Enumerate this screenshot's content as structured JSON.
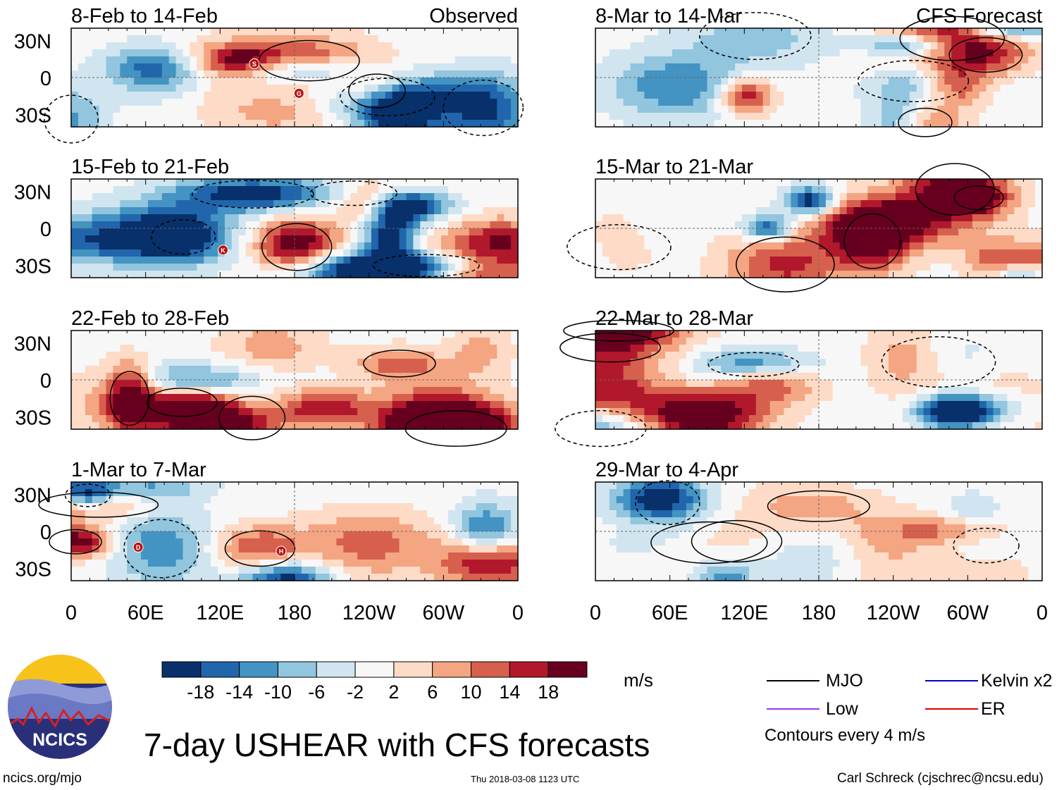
{
  "title": "7-day USHEAR with CFS forecasts",
  "site": "ncics.org/mjo",
  "timestamp": "Thu 2018-03-08 1123 UTC",
  "credit": "Carl Schreck (cjschrec@ncsu.edu)",
  "logo_text": "NCICS",
  "units": "m/s",
  "contour_note": "Contours every 4 m/s",
  "columns": [
    {
      "label": "Observed",
      "panels": [
        "8-Feb to 14-Feb",
        "15-Feb to 21-Feb",
        "22-Feb to 28-Feb",
        "1-Mar to 7-Mar"
      ]
    },
    {
      "label": "CFS Forecast",
      "panels": [
        "8-Mar to 14-Mar",
        "15-Mar to 21-Mar",
        "22-Mar to 28-Mar",
        "29-Mar to 4-Apr"
      ]
    }
  ],
  "lat_ticks": [
    "30N",
    "0",
    "30S"
  ],
  "lon_ticks": [
    "0",
    "60E",
    "120E",
    "180",
    "120W",
    "60W",
    "0"
  ],
  "storm_markers": [
    {
      "panel": 0,
      "letter": "S"
    },
    {
      "panel": 0,
      "letter": "G"
    },
    {
      "panel": 1,
      "letter": "K"
    },
    {
      "panel": 3,
      "letter": "D"
    },
    {
      "panel": 3,
      "letter": "H"
    }
  ],
  "colorbar": {
    "ticks": [
      "-18",
      "-14",
      "-10",
      "-6",
      "-2",
      "2",
      "6",
      "10",
      "14",
      "18"
    ],
    "colors": [
      "#08306b",
      "#2166ac",
      "#4393c3",
      "#92c5de",
      "#d1e5f0",
      "#f7f7f7",
      "#fddbc7",
      "#f4a582",
      "#d6604d",
      "#b2182b",
      "#67001f"
    ]
  },
  "legend": [
    {
      "label": "MJO",
      "color": "#000000"
    },
    {
      "label": "Kelvin x2",
      "color": "#0000cc"
    },
    {
      "label": "Low",
      "color": "#9933ff"
    },
    {
      "label": "ER",
      "color": "#dd0000"
    }
  ],
  "chart_data": {
    "type": "heatmap",
    "variable": "7-day USHEAR",
    "units": "m/s",
    "x_range": [
      0,
      360
    ],
    "y_range": [
      -40,
      40
    ],
    "contour_interval": 4,
    "color_levels": [
      -18,
      -14,
      -10,
      -6,
      -2,
      2,
      6,
      10,
      14,
      18
    ]
  }
}
